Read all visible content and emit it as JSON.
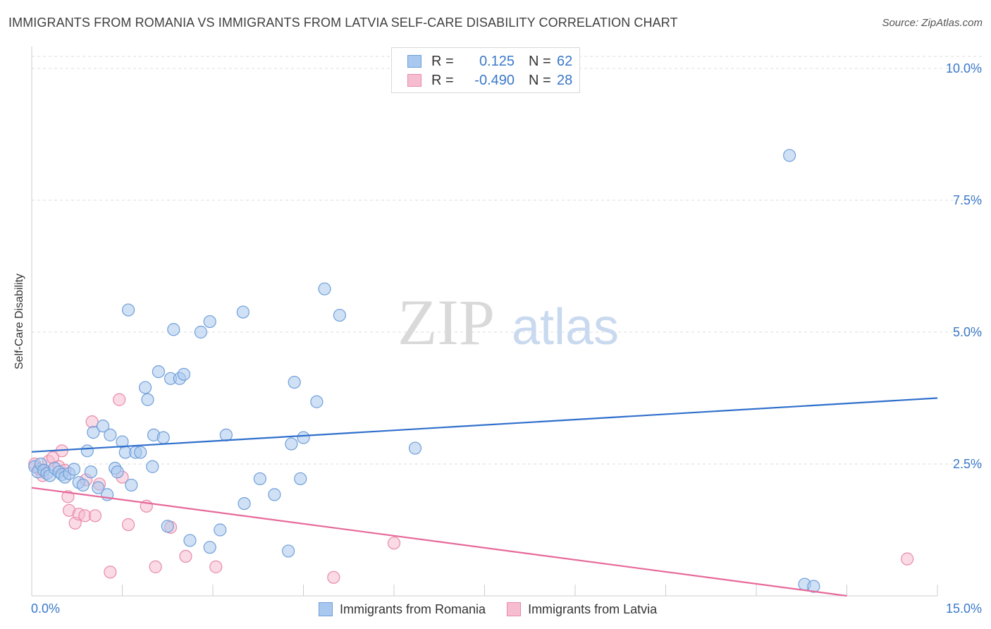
{
  "header": {
    "title": "IMMIGRANTS FROM ROMANIA VS IMMIGRANTS FROM LATVIA SELF-CARE DISABILITY CORRELATION CHART",
    "source": "Source: ZipAtlas.com"
  },
  "watermark": {
    "part1": "ZIP",
    "part2": "atlas"
  },
  "legend": {
    "rows": [
      {
        "r_label": "R =",
        "r_value": "0.125",
        "n_label": "N =",
        "n_value": "62"
      },
      {
        "r_label": "R =",
        "r_value": "-0.490",
        "n_label": "N =",
        "n_value": "28"
      }
    ]
  },
  "bottom_legend": {
    "items": [
      {
        "label": "Immigrants from Romania"
      },
      {
        "label": "Immigrants from Latvia"
      }
    ]
  },
  "colors": {
    "romania_fill": "#a9c8ef",
    "romania_stroke": "#6f9fd8",
    "romania_line": "#2f6fcc",
    "latvia_fill": "#f6bcd0",
    "latvia_stroke": "#e98aab",
    "latvia_line": "#e6699a",
    "accent_text": "#3a78c9",
    "grid": "#dddddd"
  },
  "chart_data": {
    "type": "scatter",
    "title": "IMMIGRANTS FROM ROMANIA VS IMMIGRANTS FROM LATVIA SELF-CARE DISABILITY CORRELATION CHART",
    "xlabel": "",
    "ylabel": "Self-Care Disability",
    "xlim": [
      0,
      15
    ],
    "ylim": [
      0,
      10
    ],
    "x_tick_labels": [
      {
        "value": 0,
        "label": "0.0%"
      },
      {
        "value": 15,
        "label": "15.0%"
      }
    ],
    "y_tick_labels": [
      {
        "value": 10,
        "label": "10.0%"
      },
      {
        "value": 7.5,
        "label": "7.5%"
      },
      {
        "value": 5,
        "label": "5.0%"
      },
      {
        "value": 2.5,
        "label": "2.5%"
      }
    ],
    "grid": true,
    "series": [
      {
        "name": "Immigrants from Romania",
        "r": 0.125,
        "n": 62,
        "trend": {
          "x": [
            0,
            15
          ],
          "y": [
            2.73,
            3.75
          ]
        },
        "points": [
          [
            0.05,
            2.45
          ],
          [
            0.1,
            2.35
          ],
          [
            0.15,
            2.5
          ],
          [
            0.2,
            2.38
          ],
          [
            0.25,
            2.32
          ],
          [
            0.3,
            2.28
          ],
          [
            0.38,
            2.42
          ],
          [
            0.45,
            2.35
          ],
          [
            0.5,
            2.3
          ],
          [
            0.55,
            2.25
          ],
          [
            0.62,
            2.32
          ],
          [
            0.7,
            2.4
          ],
          [
            0.78,
            2.15
          ],
          [
            0.85,
            2.1
          ],
          [
            0.92,
            2.75
          ],
          [
            0.98,
            2.35
          ],
          [
            1.02,
            3.1
          ],
          [
            1.1,
            2.05
          ],
          [
            1.18,
            3.22
          ],
          [
            1.25,
            1.92
          ],
          [
            1.3,
            3.05
          ],
          [
            1.38,
            2.42
          ],
          [
            1.42,
            2.35
          ],
          [
            1.5,
            2.92
          ],
          [
            1.55,
            2.72
          ],
          [
            1.6,
            5.42
          ],
          [
            1.65,
            2.1
          ],
          [
            1.72,
            2.72
          ],
          [
            1.8,
            2.72
          ],
          [
            1.88,
            3.95
          ],
          [
            1.92,
            3.72
          ],
          [
            2.0,
            2.45
          ],
          [
            2.02,
            3.05
          ],
          [
            2.1,
            4.25
          ],
          [
            2.18,
            3.0
          ],
          [
            2.3,
            4.12
          ],
          [
            2.35,
            5.05
          ],
          [
            2.45,
            4.12
          ],
          [
            2.52,
            4.2
          ],
          [
            2.62,
            1.05
          ],
          [
            2.8,
            5.0
          ],
          [
            2.95,
            5.2
          ],
          [
            2.95,
            0.92
          ],
          [
            3.12,
            1.25
          ],
          [
            3.22,
            3.05
          ],
          [
            3.5,
            5.38
          ],
          [
            3.52,
            1.75
          ],
          [
            3.78,
            2.22
          ],
          [
            4.02,
            1.92
          ],
          [
            4.25,
            0.85
          ],
          [
            4.3,
            2.88
          ],
          [
            4.35,
            4.05
          ],
          [
            4.45,
            2.22
          ],
          [
            4.5,
            3.0
          ],
          [
            4.72,
            3.68
          ],
          [
            4.85,
            5.82
          ],
          [
            5.1,
            5.32
          ],
          [
            6.35,
            2.8
          ],
          [
            12.55,
            8.35
          ],
          [
            12.8,
            0.22
          ],
          [
            12.95,
            0.18
          ],
          [
            2.25,
            1.32
          ]
        ]
      },
      {
        "name": "Immigrants from Latvia",
        "r": -0.49,
        "n": 28,
        "trend": {
          "x": [
            0,
            13.5
          ],
          "y": [
            2.05,
            0.0
          ]
        },
        "points": [
          [
            0.05,
            2.5
          ],
          [
            0.12,
            2.4
          ],
          [
            0.18,
            2.28
          ],
          [
            0.28,
            2.55
          ],
          [
            0.35,
            2.62
          ],
          [
            0.45,
            2.45
          ],
          [
            0.5,
            2.75
          ],
          [
            0.55,
            2.38
          ],
          [
            0.6,
            1.88
          ],
          [
            0.62,
            1.62
          ],
          [
            0.72,
            1.38
          ],
          [
            0.78,
            1.55
          ],
          [
            0.88,
            1.52
          ],
          [
            0.9,
            2.2
          ],
          [
            1.0,
            3.3
          ],
          [
            1.05,
            1.52
          ],
          [
            1.12,
            2.12
          ],
          [
            1.3,
            0.45
          ],
          [
            1.45,
            3.72
          ],
          [
            1.5,
            2.25
          ],
          [
            1.6,
            1.35
          ],
          [
            1.9,
            1.7
          ],
          [
            2.05,
            0.55
          ],
          [
            2.3,
            1.3
          ],
          [
            2.55,
            0.75
          ],
          [
            3.05,
            0.55
          ],
          [
            5.0,
            0.35
          ],
          [
            6.0,
            1.0
          ]
        ]
      }
    ],
    "extra_points_latvia": [
      [
        14.5,
        0.7
      ]
    ]
  }
}
